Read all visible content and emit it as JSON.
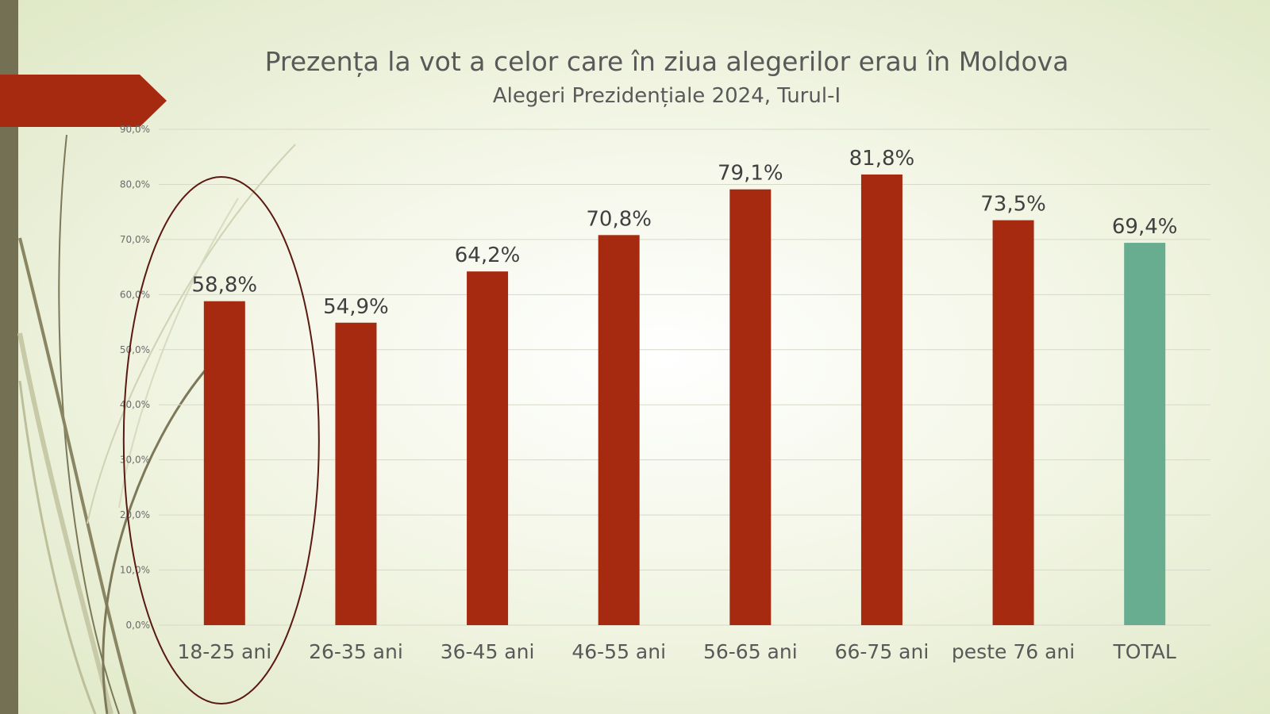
{
  "colors": {
    "bar": "#a52a10",
    "total_bar": "#68ad90",
    "banner": "#a52a10",
    "left_bar": "#737053",
    "ellipse": "#5a1a12",
    "gridline": "#d6d9c8"
  },
  "chart_data": {
    "type": "bar",
    "title": "Prezența la vot a celor care în ziua alegerilor erau în Moldova",
    "subtitle": "Alegeri Prezidențiale 2024, Turul-I",
    "xlabel": "",
    "ylabel": "",
    "categories": [
      "18-25 ani",
      "26-35 ani",
      "36-45 ani",
      "46-55 ani",
      "56-65 ani",
      "66-75 ani",
      "peste 76 ani",
      "TOTAL"
    ],
    "values": [
      58.8,
      54.9,
      64.2,
      70.8,
      79.1,
      81.8,
      73.5,
      69.4
    ],
    "data_labels": [
      "58,8%",
      "54,9%",
      "64,2%",
      "70,8%",
      "79,1%",
      "81,8%",
      "73,5%",
      "69,4%"
    ],
    "ylim": [
      0,
      90
    ],
    "yticks": [
      0,
      10,
      20,
      30,
      40,
      50,
      60,
      70,
      80,
      90
    ],
    "ytick_labels": [
      "0,0%",
      "10,0%",
      "20,0%",
      "30,0%",
      "40,0%",
      "50,0%",
      "60,0%",
      "70,0%",
      "80,0%",
      "90,0%"
    ],
    "grid": true,
    "highlighted_category": "18-25 ani",
    "highlight_shape": "ellipse",
    "distinct_color_category": "TOTAL"
  }
}
